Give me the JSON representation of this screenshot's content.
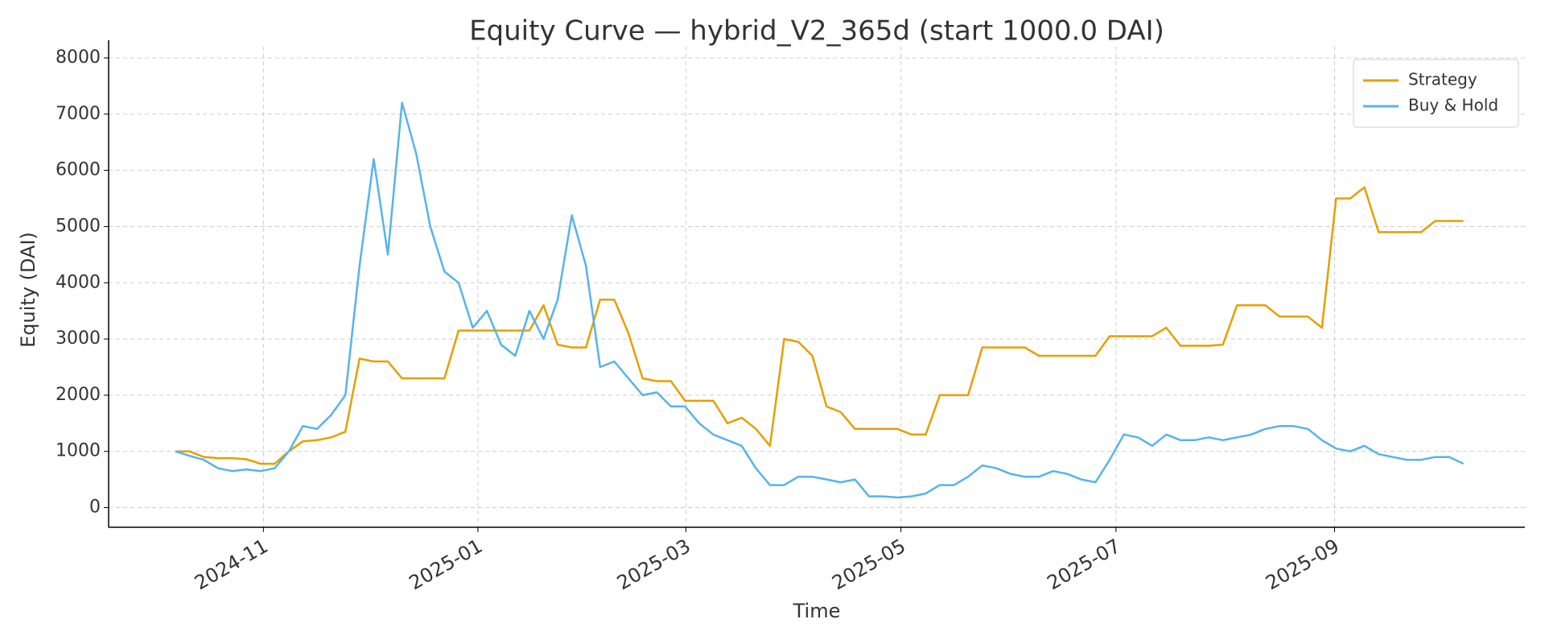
{
  "chart_data": {
    "type": "line",
    "title": "Equity Curve — hybrid_V2_365d (start 1000.0 DAI)",
    "xlabel": "Time",
    "ylabel": "Equity (DAI)",
    "x": [
      2024.765,
      2024.776,
      2024.787,
      2024.798,
      2024.809,
      2024.82,
      2024.831,
      2024.842,
      2024.853,
      2024.864,
      2024.875,
      2024.886,
      2024.897,
      2024.908,
      2024.919,
      2024.93,
      2024.941,
      2024.952,
      2024.963,
      2024.974,
      2024.985,
      2024.996,
      2025.007,
      2025.018,
      2025.029,
      2025.04,
      2025.051,
      2025.062,
      2025.073,
      2025.084,
      2025.095,
      2025.106,
      2025.117,
      2025.128,
      2025.139,
      2025.15,
      2025.161,
      2025.172,
      2025.183,
      2025.194,
      2025.205,
      2025.216,
      2025.227,
      2025.238,
      2025.249,
      2025.26,
      2025.271,
      2025.282,
      2025.293,
      2025.304,
      2025.315,
      2025.326,
      2025.337,
      2025.348,
      2025.359,
      2025.37,
      2025.381,
      2025.392,
      2025.403,
      2025.414,
      2025.425,
      2025.436,
      2025.447,
      2025.458,
      2025.469,
      2025.48,
      2025.491,
      2025.502,
      2025.513,
      2025.524,
      2025.535,
      2025.546,
      2025.557,
      2025.568,
      2025.579,
      2025.59,
      2025.601,
      2025.612,
      2025.623,
      2025.634,
      2025.645,
      2025.656,
      2025.667,
      2025.678,
      2025.689,
      2025.7,
      2025.711,
      2025.722,
      2025.733,
      2025.744,
      2025.755,
      2025.766
    ],
    "series": [
      {
        "name": "Strategy",
        "color": "#E69F00",
        "values": [
          1000,
          1000,
          900,
          880,
          880,
          860,
          780,
          780,
          1000,
          1180,
          1200,
          1250,
          1350,
          2650,
          2600,
          2600,
          2300,
          2300,
          2300,
          2300,
          3150,
          3150,
          3150,
          3150,
          3150,
          3150,
          3600,
          2900,
          2850,
          2850,
          3700,
          3700,
          3100,
          2300,
          2250,
          2250,
          1900,
          1900,
          1900,
          1500,
          1600,
          1400,
          1100,
          3000,
          2950,
          2700,
          1800,
          1700,
          1400,
          1400,
          1400,
          1400,
          1300,
          1300,
          2000,
          2000,
          2000,
          2850,
          2850,
          2850,
          2850,
          2700,
          2700,
          2700,
          2700,
          2700,
          3050,
          3050,
          3050,
          3050,
          3200,
          2880,
          2880,
          2880,
          2900,
          3600,
          3600,
          3600,
          3400,
          3400,
          3400,
          3200,
          5500,
          5500,
          5700,
          4900,
          4900,
          4900,
          4900,
          5100,
          5100,
          5100
        ]
      },
      {
        "name": "Buy & Hold",
        "color": "#56B4E9",
        "values": [
          1000,
          920,
          850,
          700,
          650,
          680,
          650,
          700,
          1000,
          1450,
          1400,
          1650,
          2000,
          4300,
          6200,
          4500,
          7200,
          6300,
          5000,
          4200,
          4000,
          3200,
          3500,
          2900,
          2700,
          3500,
          3000,
          3700,
          5200,
          4300,
          2500,
          2600,
          2300,
          2000,
          2050,
          1800,
          1800,
          1500,
          1300,
          1200,
          1100,
          700,
          400,
          400,
          550,
          550,
          500,
          450,
          500,
          200,
          200,
          180,
          200,
          250,
          400,
          400,
          550,
          750,
          700,
          600,
          550,
          550,
          650,
          600,
          500,
          450,
          850,
          1300,
          1250,
          1100,
          1300,
          1200,
          1200,
          1250,
          1200,
          1250,
          1300,
          1400,
          1450,
          1450,
          1400,
          1200,
          1050,
          1000,
          1100,
          950,
          900,
          850,
          850,
          900,
          900,
          780
        ]
      }
    ],
    "xlim": [
      2024.713,
      2025.8137
    ],
    "xticks": [
      {
        "value": 2024.8333,
        "label": "2024-11"
      },
      {
        "value": 2025.0,
        "label": "2025-01"
      },
      {
        "value": 2025.1616,
        "label": "2025-03"
      },
      {
        "value": 2025.3288,
        "label": "2025-05"
      },
      {
        "value": 2025.4959,
        "label": "2025-07"
      },
      {
        "value": 2025.6658,
        "label": "2025-09"
      }
    ],
    "ylim": [
      -350,
      8200
    ],
    "yticks": [
      0,
      1000,
      2000,
      3000,
      4000,
      5000,
      6000,
      7000,
      8000
    ],
    "grid": true,
    "legend": "upper right"
  }
}
